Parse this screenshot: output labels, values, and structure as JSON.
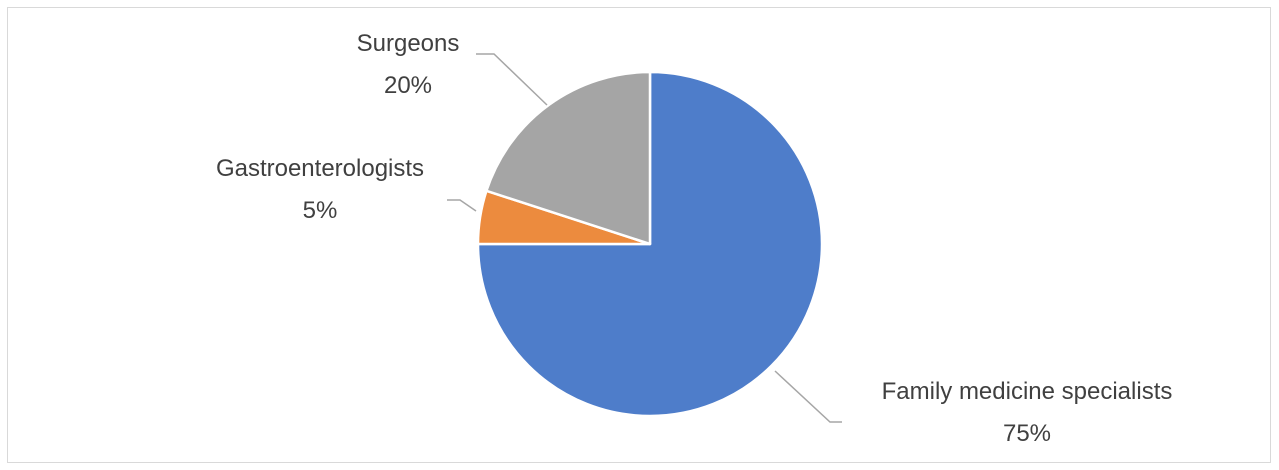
{
  "chart_data": {
    "type": "pie",
    "title": "",
    "start_angle_deg": 0,
    "direction": "clockwise",
    "slices": [
      {
        "category": "Family medicine specialists",
        "value": 75,
        "percent_label": "75%",
        "color": "#4E7DCA"
      },
      {
        "category": "Gastroenterologists",
        "value": 5,
        "percent_label": "5%",
        "color": "#EC8B3E"
      },
      {
        "category": "Surgeons",
        "value": 20,
        "percent_label": "20%",
        "color": "#A5A5A5"
      }
    ],
    "data_labels": "outside with leader lines",
    "legend": "none"
  }
}
